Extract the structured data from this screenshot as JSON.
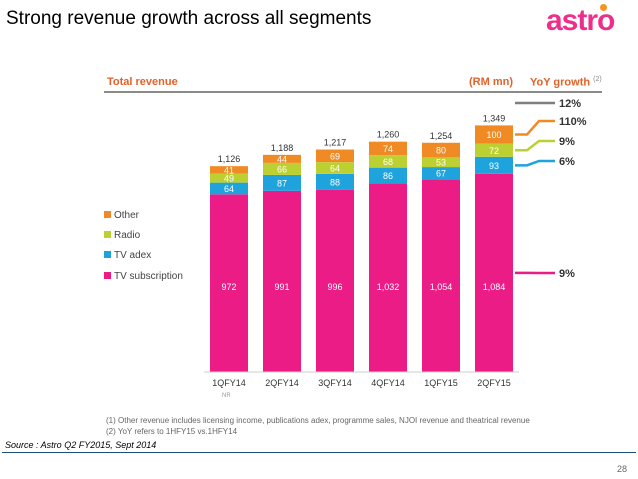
{
  "slide": {
    "title": "Strong revenue growth across all segments",
    "logo": "astro",
    "source": "Source : Astro Q2 FY2015, Sept 2014",
    "page_number": "28",
    "footnotes": [
      "(1)  Other revenue includes licensing income, publications adex, programme sales, NJOI revenue and theatrical revenue",
      "(2)  YoY refers to 1HFY15 vs.1HFY14"
    ]
  },
  "panel": {
    "title": "Total revenue",
    "unit": "(RM mn)",
    "yoy_title": "YoY growth",
    "yoy_sup": "(2)",
    "nr_note": "NR"
  },
  "chart_data": {
    "type": "bar",
    "stacked": true,
    "title": "Total revenue",
    "unit": "(RM mn)",
    "categories": [
      "1QFY14",
      "2QFY14",
      "3QFY14",
      "4QFY14",
      "1QFY15",
      "2QFY15"
    ],
    "series": [
      {
        "name": "TV subscription",
        "color": "#ec1c87",
        "values": [
          972,
          991,
          996,
          1032,
          1054,
          1084
        ]
      },
      {
        "name": "TV adex",
        "color": "#1fa3dc",
        "values": [
          64,
          87,
          88,
          86,
          67,
          93
        ]
      },
      {
        "name": "Radio",
        "color": "#bcd131",
        "values": [
          49,
          66,
          64,
          68,
          53,
          72
        ]
      },
      {
        "name": "Other",
        "color": "#f08a24",
        "values": [
          41,
          44,
          69,
          74,
          80,
          100
        ]
      }
    ],
    "totals": [
      1126,
      1188,
      1217,
      1260,
      1254,
      1349
    ],
    "legend_order": [
      "Other",
      "Radio",
      "TV adex",
      "TV subscription"
    ],
    "legend_position": "left",
    "yoy_growth": [
      {
        "label": "12%",
        "color": "#7f7f7f",
        "target": "total"
      },
      {
        "label": "110%",
        "color": "#f08a24",
        "target": "Other"
      },
      {
        "label": "9%",
        "color": "#bcd131",
        "target": "Radio"
      },
      {
        "label": "6%",
        "color": "#1fa3dc",
        "target": "TV adex"
      },
      {
        "label": "9%",
        "color": "#ec1c87",
        "target": "TV subscription"
      }
    ]
  }
}
